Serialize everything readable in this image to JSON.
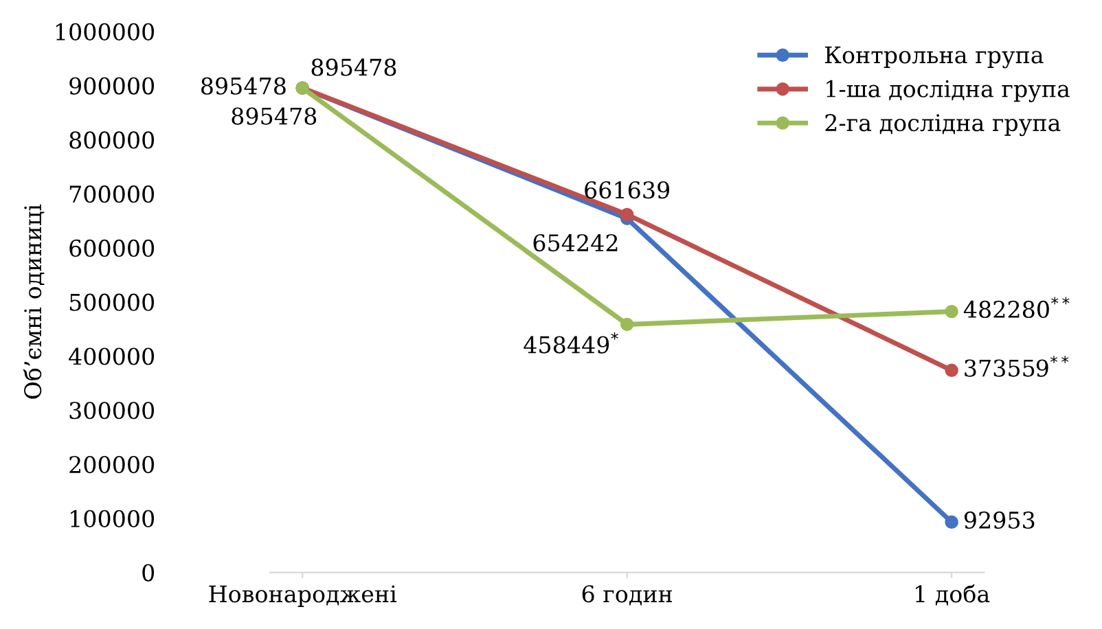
{
  "chart_data": {
    "type": "line",
    "ylabel": "Об’ємні одиниці",
    "categories": [
      "Новонароджені",
      "6 годин",
      "1 доба"
    ],
    "series": [
      {
        "name": "Контрольна група",
        "color": "#4472c4",
        "values": [
          895478,
          654242,
          92953
        ],
        "value_labels": [
          "895478",
          "654242",
          "92953"
        ]
      },
      {
        "name": "1-ша дослідна група",
        "color": "#c0504d",
        "values": [
          895478,
          661639,
          373559
        ],
        "value_labels": [
          "895478",
          "661639",
          "373559$^{**}$"
        ]
      },
      {
        "name": "2-га дослідна група",
        "color": "#9bbb59",
        "values": [
          895478,
          458449,
          482280
        ],
        "value_labels": [
          "895478",
          "458449$^{*}$",
          "482280$^{**}$"
        ]
      }
    ],
    "ylim": [
      0,
      1000000
    ],
    "yticks": [
      0,
      100000,
      200000,
      300000,
      400000,
      500000,
      600000,
      700000,
      800000,
      900000,
      1000000
    ],
    "grid": false,
    "legend": "top right",
    "marker": "circle",
    "line_style": "solid"
  }
}
